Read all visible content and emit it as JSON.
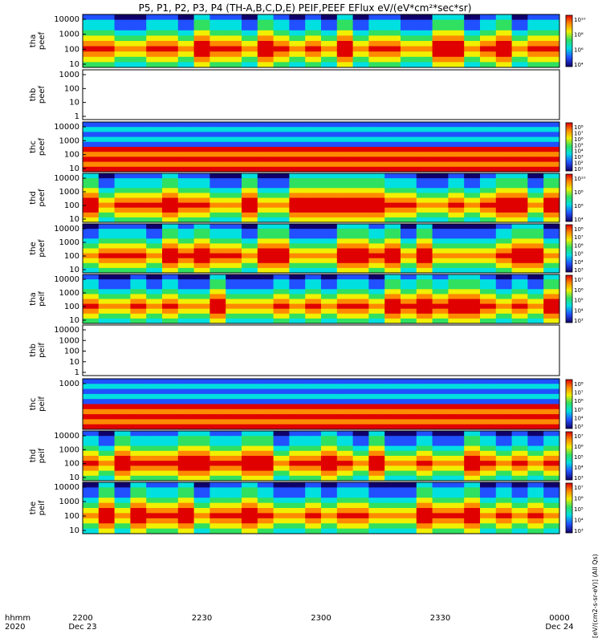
{
  "title": "P5, P1, P2, P3, P4 (TH-A,B,C,D,E) PEIF,PEEF EFlux eV/(eV*cm²*sec*sr)",
  "colorbar_label": "[eV/(cm2-s-sr-eV)] (All Qs)",
  "footer": {
    "row1_label": "hhmm",
    "row2_label": "2020",
    "date_left": "Dec 23",
    "date_right": "Dec 24"
  },
  "chart_data": {
    "type": "heatmap",
    "x": {
      "unit": "hhmm",
      "range": [
        "2200",
        "0000"
      ],
      "ticks": [
        "2200",
        "2230",
        "2300",
        "2330",
        "0000"
      ]
    },
    "panels": [
      {
        "id": "tha-peef",
        "label": [
          "thа",
          "peef"
        ],
        "yticks": [
          "10000",
          "1000",
          "100",
          "10"
        ],
        "cbar": [
          "10¹⁰",
          "10⁸",
          "10⁶",
          "10⁴"
        ],
        "has_data": true
      },
      {
        "id": "thb-peef",
        "label": [
          "thb",
          "peef"
        ],
        "yticks": [
          "1000",
          "100",
          "10",
          "1"
        ],
        "cbar": [],
        "has_data": false
      },
      {
        "id": "thc-peef",
        "label": [
          "thc",
          "peef"
        ],
        "yticks": [
          "10000",
          "1000",
          "100",
          "10"
        ],
        "cbar": [
          "10⁸",
          "10⁷",
          "10⁶",
          "10⁵",
          "10⁴",
          "10³",
          "10²",
          "10¹"
        ],
        "has_data": true
      },
      {
        "id": "thd-peef",
        "label": [
          "thd",
          "peef"
        ],
        "yticks": [
          "10000",
          "1000",
          "100",
          "10"
        ],
        "cbar": [
          "10¹⁰",
          "10⁸",
          "10⁶",
          "10⁴"
        ],
        "has_data": true
      },
      {
        "id": "the-peef",
        "label": [
          "the",
          "peef"
        ],
        "yticks": [
          "10000",
          "1000",
          "100",
          "10"
        ],
        "cbar": [
          "10⁸",
          "10⁷",
          "10⁶",
          "10⁵",
          "10⁴",
          "10³"
        ],
        "has_data": true
      },
      {
        "id": "tha-peif",
        "label": [
          "thа",
          "peif"
        ],
        "yticks": [
          "10000",
          "1000",
          "100",
          "10"
        ],
        "cbar": [
          "10⁷",
          "10⁶",
          "10⁵",
          "10⁴",
          "10³"
        ],
        "has_data": true
      },
      {
        "id": "thb-peif",
        "label": [
          "thb",
          "peif"
        ],
        "yticks": [
          "10000",
          "1000",
          "100",
          "10",
          "1"
        ],
        "cbar": [],
        "has_data": false
      },
      {
        "id": "thc-peif",
        "label": [
          "thc",
          "peif"
        ],
        "yticks": [
          "1000"
        ],
        "cbar": [
          "10⁸",
          "10⁷",
          "10⁶",
          "10⁵",
          "10⁴",
          "10³"
        ],
        "has_data": true
      },
      {
        "id": "thd-peif",
        "label": [
          "thd",
          "peif"
        ],
        "yticks": [
          "10000",
          "1000",
          "100",
          "10"
        ],
        "cbar": [
          "10⁷",
          "10⁶",
          "10⁵",
          "10⁴",
          "10³"
        ],
        "has_data": true
      },
      {
        "id": "the-peif",
        "label": [
          "the",
          "peif"
        ],
        "yticks": [
          "10000",
          "1000",
          "100",
          "10"
        ],
        "cbar": [
          "10⁷",
          "10⁶",
          "10⁵",
          "10⁴",
          "10³"
        ],
        "has_data": true
      }
    ]
  },
  "colors": {
    "red": "#e00000",
    "orange": "#ff8a00",
    "yellow": "#f0f000",
    "green": "#30e060",
    "cyan": "#00e0e0",
    "blue": "#2050ff",
    "navy": "#10006a"
  }
}
